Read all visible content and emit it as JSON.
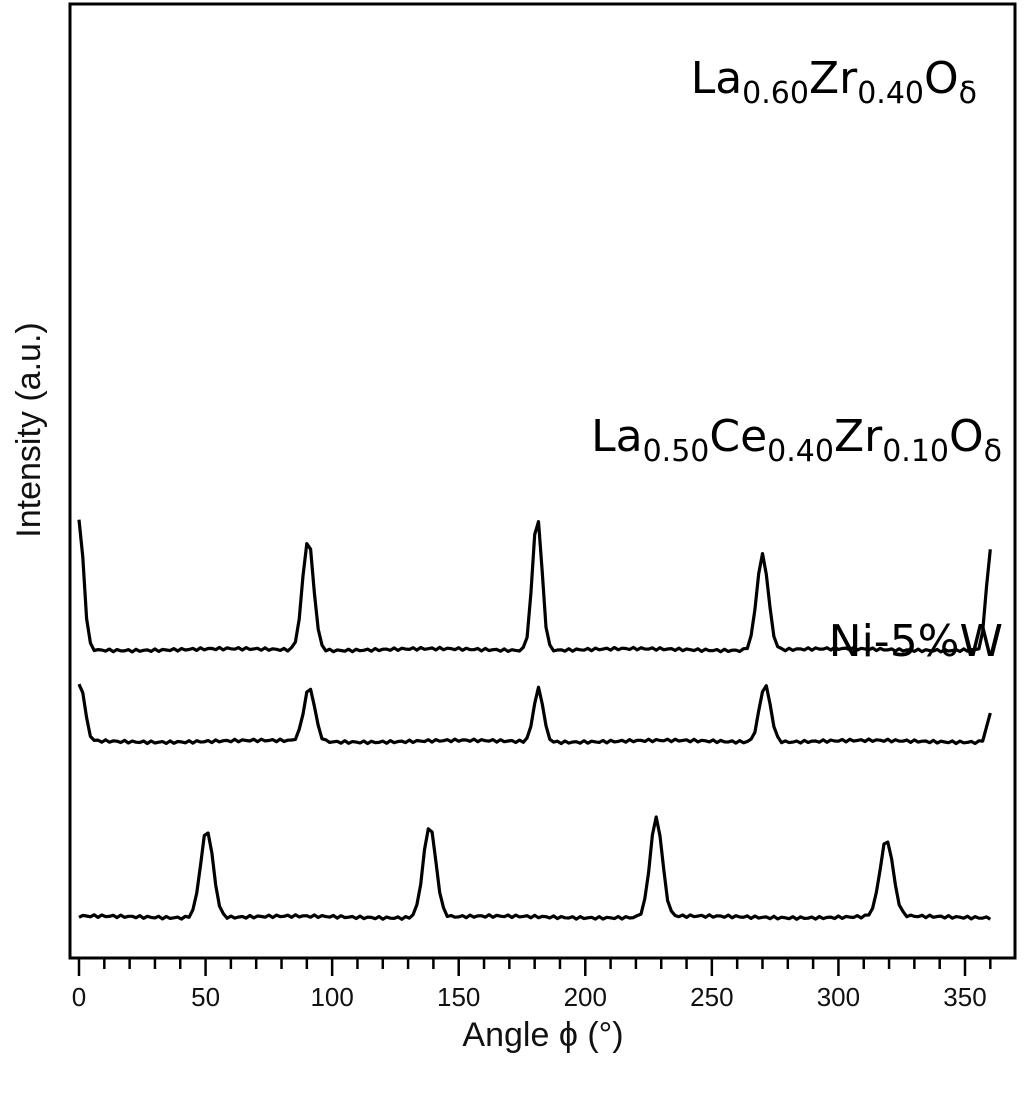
{
  "chart_data": {
    "type": "line",
    "xlabel": "Angle ϕ (°)",
    "ylabel": "Intensity (a.u.)",
    "xlim": [
      -3,
      363
    ],
    "ylim": [
      0,
      10
    ],
    "x_ticks": [
      0,
      50,
      100,
      150,
      200,
      250,
      300,
      350
    ],
    "x_minor_step": 10,
    "y_ticks_shown": false,
    "grid": false,
    "legend": "labels placed next to each curve",
    "line_color": "#000000",
    "series": [
      {
        "name": "La0.60Zr0.40Oδ",
        "label_parts": [
          {
            "text": "La",
            "sub": false
          },
          {
            "text": "0.60",
            "sub": true
          },
          {
            "text": "Zr",
            "sub": false
          },
          {
            "text": "0.40",
            "sub": true
          },
          {
            "text": "O",
            "sub": false
          },
          {
            "text": "δ",
            "sub": true
          }
        ],
        "baseline": 7.0,
        "peaks": [
          {
            "x": 0,
            "height": 3.4,
            "width": 1.8
          },
          {
            "x": 90.5,
            "height": 2.9,
            "width": 2.2
          },
          {
            "x": 181,
            "height": 3.5,
            "width": 1.9
          },
          {
            "x": 270,
            "height": 2.5,
            "width": 2.3
          },
          {
            "x": 360,
            "height": 2.6,
            "width": 1.6
          }
        ]
      },
      {
        "name": "La0.50Ce0.40Zr0.10Oδ",
        "label_parts": [
          {
            "text": "La",
            "sub": false
          },
          {
            "text": "0.50",
            "sub": true
          },
          {
            "text": "Ce",
            "sub": false
          },
          {
            "text": "0.40",
            "sub": true
          },
          {
            "text": "Zr",
            "sub": false
          },
          {
            "text": "0.10",
            "sub": true
          },
          {
            "text": "O",
            "sub": false
          },
          {
            "text": "δ",
            "sub": true
          }
        ],
        "baseline": 4.6,
        "peaks": [
          {
            "x": 0.5,
            "height": 1.5,
            "width": 1.8
          },
          {
            "x": 91,
            "height": 1.4,
            "width": 2.2
          },
          {
            "x": 181.5,
            "height": 1.4,
            "width": 1.9
          },
          {
            "x": 271,
            "height": 1.5,
            "width": 2.2
          },
          {
            "x": 360,
            "height": 0.75,
            "width": 1.3
          }
        ]
      },
      {
        "name": "Ni-5%W",
        "label_parts": [
          {
            "text": "Ni-5%W",
            "sub": false
          }
        ],
        "baseline": 0.0,
        "peaks": [
          {
            "x": 50.5,
            "height": 2.3,
            "width": 2.5
          },
          {
            "x": 138.5,
            "height": 2.4,
            "width": 2.5
          },
          {
            "x": 228,
            "height": 2.6,
            "width": 2.4
          },
          {
            "x": 319,
            "height": 2.0,
            "width": 2.6
          }
        ]
      }
    ]
  }
}
